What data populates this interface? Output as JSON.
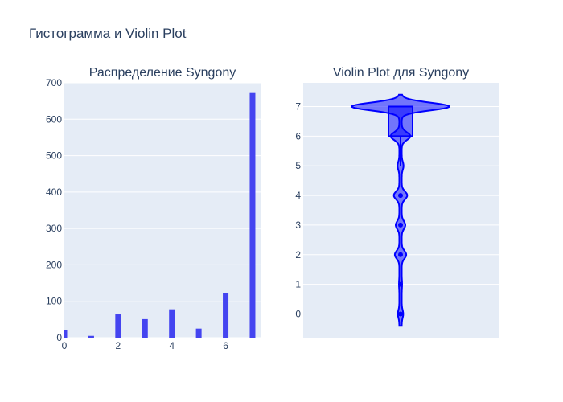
{
  "title": "Гистограмма и Violin Plot",
  "chart_data": [
    {
      "type": "bar",
      "title": "Распределение Syngony",
      "x": [
        0,
        1,
        2,
        3,
        4,
        5,
        6,
        7
      ],
      "values": [
        21,
        5,
        64,
        51,
        78,
        25,
        122,
        672
      ],
      "xlim": [
        0,
        7.3
      ],
      "ylim": [
        0,
        700
      ],
      "x_ticks": [
        0,
        2,
        4,
        6
      ],
      "y_ticks": [
        0,
        100,
        200,
        300,
        400,
        500,
        600,
        700
      ],
      "xlabel": "",
      "ylabel": "",
      "grid": true,
      "color": "#4444f0"
    },
    {
      "type": "violin",
      "title": "Violin Plot для Syngony",
      "values_distribution": {
        "0": 21,
        "1": 5,
        "2": 64,
        "3": 51,
        "4": 78,
        "5": 25,
        "6": 122,
        "7": 672
      },
      "box": {
        "q1": 6,
        "median": 7,
        "q3": 7,
        "lower_fence": 5,
        "upper_fence": 7
      },
      "y_ticks": [
        0,
        1,
        2,
        3,
        4,
        5,
        6,
        7
      ],
      "ylim": [
        -0.8,
        7.8
      ],
      "xlabel": "",
      "ylabel": "",
      "grid": true,
      "color": "#0000ff"
    }
  ]
}
